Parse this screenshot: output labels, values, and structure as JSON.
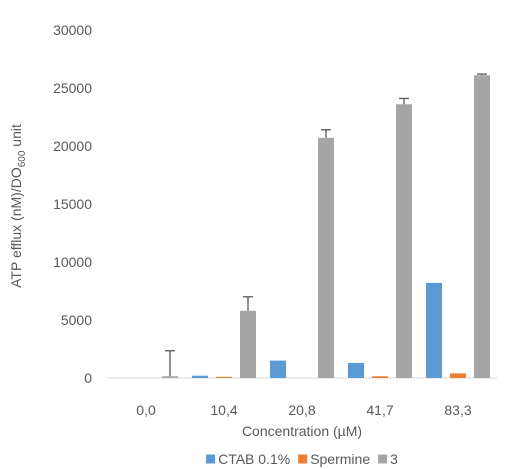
{
  "chart_data": {
    "type": "bar",
    "categories": [
      "0,0",
      "10,4",
      "20,8",
      "41,7",
      "83,3"
    ],
    "series": [
      {
        "name": "CTAB 0.1%",
        "color": "#5b9bd5",
        "values": [
          0,
          200,
          1500,
          1300,
          8200
        ],
        "errors": [
          0,
          0,
          0,
          0,
          0
        ]
      },
      {
        "name": "Spermine",
        "color": "#ed7d31",
        "values": [
          0,
          100,
          0,
          150,
          400
        ],
        "errors": [
          0,
          0,
          0,
          0,
          0
        ]
      },
      {
        "name": "3",
        "color": "#a5a5a5",
        "values": [
          150,
          5800,
          20700,
          23600,
          26100
        ],
        "errors": [
          2200,
          1200,
          700,
          500,
          100
        ]
      }
    ],
    "xlabel": "Concentration (µM)",
    "ylabel": {
      "prefix": "ATP efflux (nM)/DO",
      "subscript": "600",
      "suffix": " unit"
    },
    "ylim": [
      0,
      30000
    ],
    "yticks": [
      0,
      5000,
      10000,
      15000,
      20000,
      25000,
      30000
    ],
    "grid": false,
    "legend_position": "bottom"
  }
}
